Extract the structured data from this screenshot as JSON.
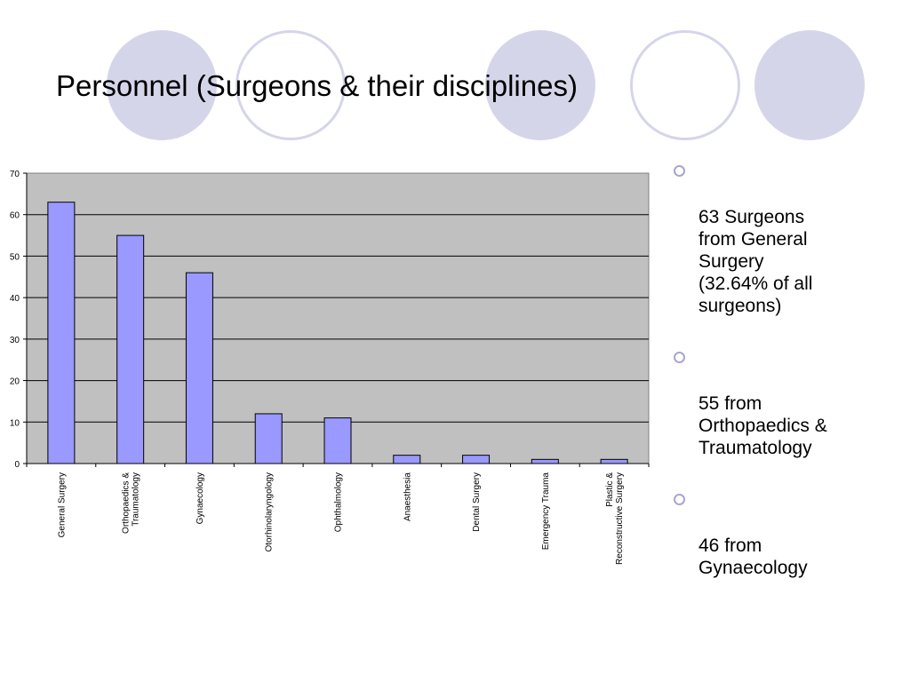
{
  "slide": {
    "title": "Personnel (Surgeons & their disciplines)",
    "accent_color": "#d5d5ea",
    "decorations": [
      "filled-circle",
      "ring-circle",
      "filled-circle",
      "ring-circle",
      "filled-circle"
    ]
  },
  "bullets": [
    "63 Surgeons\nfrom General\nSurgery\n(32.64% of all\nsurgeons)",
    " 55 from\nOrthopaedics &\nTraumatology",
    " 46 from\nGynaecology"
  ],
  "chart_data": {
    "type": "bar",
    "categories": [
      "General Surgery",
      "Orthopaedics & Traumatology",
      "Gynaecology",
      "Otorhinolaryngology",
      "Ophthalmology",
      "Anaesthesia",
      "Dental Surgery",
      "Emergency Trauma",
      "Plastic & Reconstructive Surgery"
    ],
    "category_label_lines": [
      [
        "General Surgery"
      ],
      [
        "Orthopaedics &",
        "Traumatology"
      ],
      [
        "Gynaecology"
      ],
      [
        "Otorhinolaryngology"
      ],
      [
        "Ophthalmology"
      ],
      [
        "Anaesthesia"
      ],
      [
        "Dental Surgery"
      ],
      [
        "Emergency Trauma"
      ],
      [
        "Plastic &",
        "Reconstructive Surgery"
      ]
    ],
    "values": [
      63,
      55,
      46,
      12,
      11,
      2,
      2,
      1,
      1
    ],
    "ylim": [
      0,
      70
    ],
    "yticks": [
      0,
      10,
      20,
      30,
      40,
      50,
      60,
      70
    ],
    "grid": true,
    "legend": "none",
    "bar_color": "#9999ff",
    "plot_background": "#c0c0c0"
  }
}
